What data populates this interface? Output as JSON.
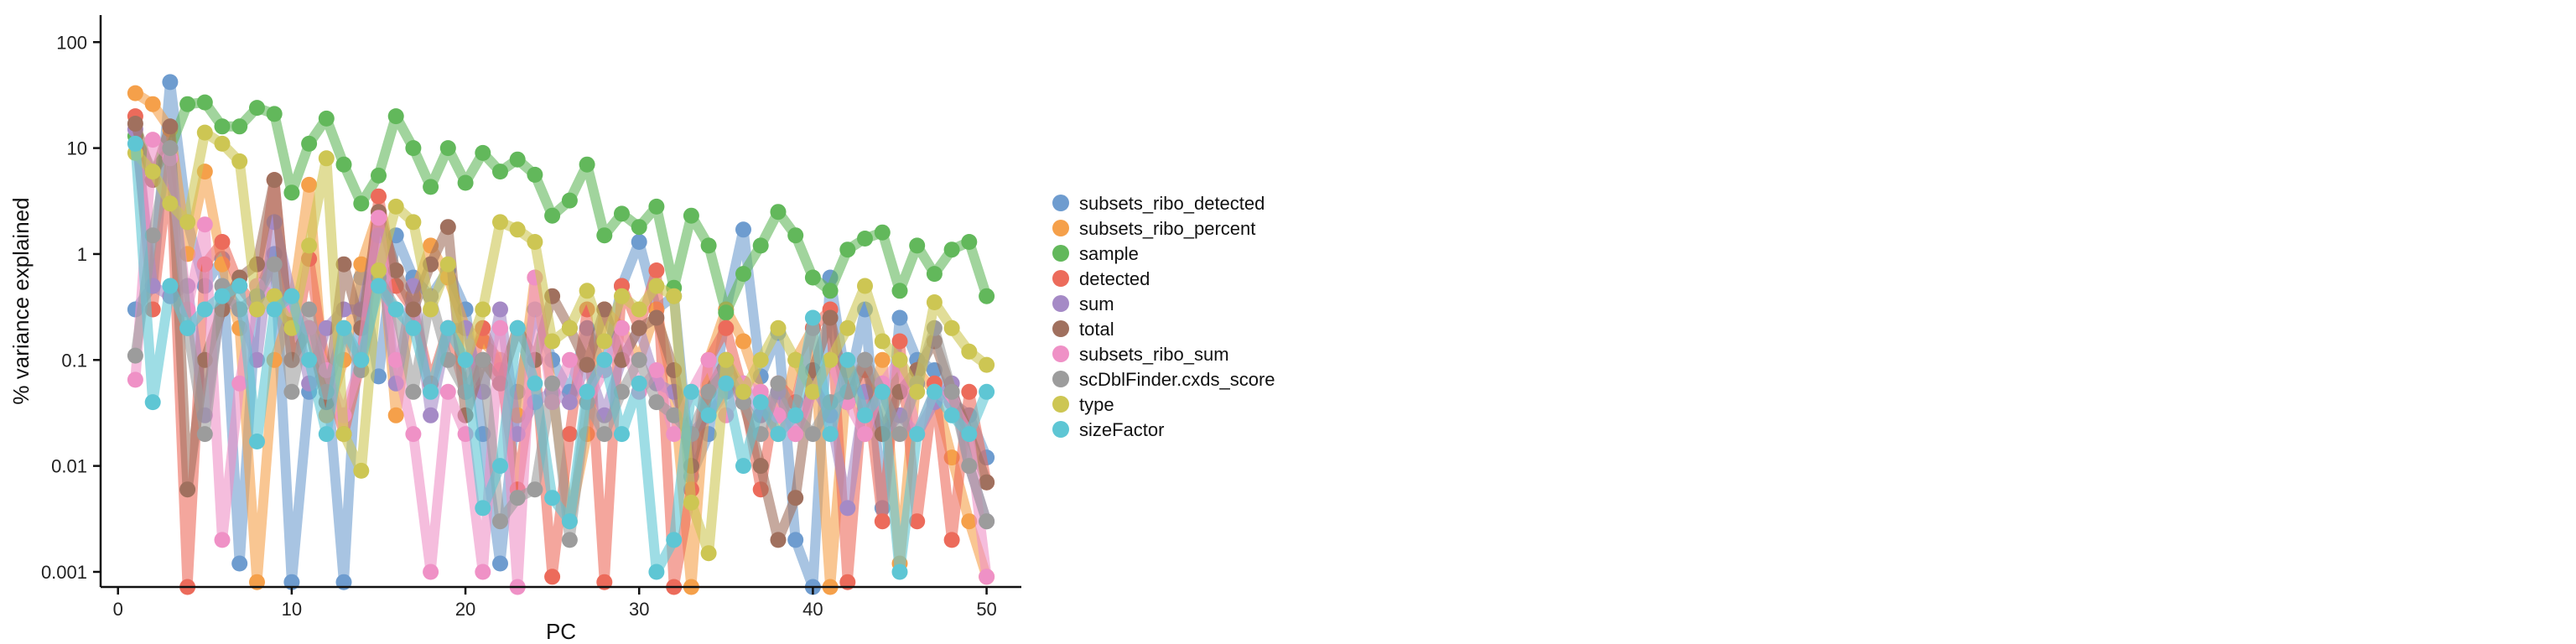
{
  "chart_data": {
    "type": "line",
    "title": "",
    "xlabel": "PC",
    "ylabel": "% variance explained",
    "y_scale": "log",
    "xlim": [
      -1,
      52
    ],
    "ylim": [
      0.00072,
      180
    ],
    "x_ticks": [
      0,
      10,
      20,
      30,
      40,
      50
    ],
    "y_ticks": [
      0.001,
      0.01,
      0.1,
      1,
      10,
      100
    ],
    "y_tick_labels": [
      "0.001",
      "0.01",
      "0.1",
      "1",
      "10",
      "100"
    ],
    "grid": false,
    "legend_position": "right",
    "x": [
      1,
      2,
      3,
      4,
      5,
      6,
      7,
      8,
      9,
      10,
      11,
      12,
      13,
      14,
      15,
      16,
      17,
      18,
      19,
      20,
      21,
      22,
      23,
      24,
      25,
      26,
      27,
      28,
      29,
      30,
      31,
      32,
      33,
      34,
      35,
      36,
      37,
      38,
      39,
      40,
      41,
      42,
      43,
      44,
      45,
      46,
      47,
      48,
      49,
      50
    ],
    "series": [
      {
        "name": "subsets_ribo_detected",
        "color": "#6e9ccf",
        "values": [
          0.3,
          0.5,
          42,
          2,
          0.5,
          0.9,
          0.0012,
          0.4,
          1,
          0.0008,
          0.05,
          0.08,
          0.0008,
          0.6,
          0.07,
          1.5,
          0.6,
          0.4,
          0.7,
          0.3,
          0.02,
          0.0012,
          0.05,
          0.3,
          0.1,
          0.05,
          0.2,
          0.08,
          0.5,
          1.3,
          0.3,
          0.4,
          0.008,
          0.02,
          0.3,
          1.7,
          0.07,
          0.18,
          0.002,
          0.0005,
          0.6,
          0.05,
          0.3,
          0.004,
          0.25,
          0.1,
          0.08,
          0.04,
          0.03,
          0.012
        ]
      },
      {
        "name": "subsets_ribo_percent",
        "color": "#f5a04a",
        "values": [
          33,
          26,
          15,
          1,
          6,
          0.8,
          0.2,
          0.0008,
          0.1,
          0.3,
          4.5,
          0.03,
          0.1,
          0.8,
          2.5,
          0.03,
          0.4,
          1.2,
          0.6,
          0.2,
          0.15,
          0.1,
          0.03,
          0.6,
          0.05,
          0.003,
          0.02,
          0.3,
          0.2,
          0.1,
          0.3,
          0.05,
          0.0006,
          0.1,
          0.3,
          0.15,
          0.05,
          0.02,
          0.1,
          0.2,
          0.0006,
          0.08,
          0.02,
          0.1,
          0.0012,
          0.08,
          0.05,
          0.012,
          0.003,
          0.0009
        ]
      },
      {
        "name": "sample",
        "color": "#62b85b",
        "values": [
          13,
          6,
          10,
          26,
          27,
          16,
          16,
          24,
          21,
          3.8,
          11,
          19,
          7,
          3,
          5.5,
          20,
          10,
          4.3,
          10,
          4.7,
          9,
          6,
          7.8,
          5.6,
          2.3,
          3.2,
          7,
          1.5,
          2.4,
          1.8,
          2.8,
          0.48,
          2.3,
          1.2,
          0.28,
          0.65,
          1.2,
          2.5,
          1.5,
          0.6,
          0.45,
          1.1,
          1.4,
          1.6,
          0.45,
          1.2,
          0.65,
          1.1,
          1.3,
          0.4
        ]
      },
      {
        "name": "detected",
        "color": "#ec6b5b",
        "values": [
          20,
          0.3,
          8,
          0.0006,
          0.8,
          1.3,
          0.5,
          0.3,
          5,
          0.1,
          0.9,
          0.08,
          0.02,
          0.1,
          3.5,
          0.5,
          0.3,
          0.06,
          0.2,
          0.05,
          0.2,
          0.08,
          0.006,
          0.1,
          0.0009,
          0.02,
          0.3,
          0.0008,
          0.5,
          0.2,
          0.7,
          0.0005,
          0.006,
          0.1,
          0.2,
          0.05,
          0.006,
          0.06,
          0.04,
          0.2,
          0.3,
          0.0008,
          0.08,
          0.003,
          0.15,
          0.003,
          0.06,
          0.002,
          0.05,
          0.007
        ]
      },
      {
        "name": "sum",
        "color": "#a58ac6",
        "values": [
          15,
          0.5,
          0.4,
          0.5,
          0.03,
          0.4,
          0.3,
          0.1,
          2,
          0.4,
          0.06,
          0.2,
          0.3,
          0.3,
          1.5,
          0.06,
          0.5,
          0.03,
          0.2,
          0.2,
          0.05,
          0.3,
          0.02,
          0.04,
          0.05,
          0.04,
          0.09,
          0.03,
          0.1,
          0.2,
          0.06,
          0.05,
          0.02,
          0.03,
          0.05,
          0.06,
          0.03,
          0.05,
          0.02,
          0.06,
          0.03,
          0.004,
          0.05,
          0.02,
          0.03,
          0.02,
          0.04,
          0.06,
          0.01,
          0.003
        ]
      },
      {
        "name": "total",
        "color": "#a0705e",
        "values": [
          17,
          5,
          16,
          0.006,
          0.1,
          0.3,
          0.6,
          0.8,
          5,
          0.1,
          0.2,
          0.04,
          0.8,
          0.2,
          2.5,
          0.7,
          0.3,
          0.8,
          1.8,
          0.03,
          0.1,
          0.06,
          0.2,
          0.1,
          0.4,
          0.2,
          0.09,
          0.3,
          0.1,
          0.2,
          0.25,
          0.08,
          0.01,
          0.05,
          0.1,
          0.04,
          0.01,
          0.002,
          0.005,
          0.08,
          0.25,
          0.04,
          0.1,
          0.02,
          0.05,
          0.08,
          0.15,
          0.05,
          0.02,
          0.007
        ]
      },
      {
        "name": "subsets_ribo_sum",
        "color": "#ef91c6",
        "values": [
          0.065,
          12,
          8,
          0.3,
          1.9,
          0.002,
          0.06,
          0.5,
          0.4,
          0.3,
          0.2,
          0.08,
          0.03,
          0.1,
          2.2,
          0.1,
          0.02,
          0.001,
          0.05,
          0.02,
          0.001,
          0.2,
          0.0006,
          0.6,
          0.04,
          0.1,
          0.04,
          0.08,
          0.2,
          0.05,
          0.08,
          0.02,
          0.05,
          0.1,
          0.03,
          0.06,
          0.05,
          0.03,
          0.02,
          0.05,
          0.1,
          0.04,
          0.02,
          0.06,
          0.1,
          0.02,
          0.05,
          0.04,
          0.02,
          0.0009
        ]
      },
      {
        "name": "scDblFinder.cxds_score",
        "color": "#9c9c9c",
        "values": [
          0.11,
          1.5,
          10,
          0.2,
          0.02,
          0.5,
          0.3,
          0.4,
          0.8,
          0.05,
          0.3,
          0.05,
          0.2,
          0.08,
          0.6,
          0.3,
          0.05,
          0.4,
          0.1,
          0.05,
          0.1,
          0.003,
          0.005,
          0.006,
          0.06,
          0.002,
          0.04,
          0.02,
          0.05,
          0.1,
          0.04,
          0.03,
          0.02,
          0.05,
          0.08,
          0.04,
          0.02,
          0.06,
          0.03,
          0.02,
          0.04,
          0.05,
          0.1,
          0.05,
          0.02,
          0.06,
          0.2,
          0.05,
          0.01,
          0.003
        ]
      },
      {
        "name": "type",
        "color": "#cdc653",
        "values": [
          9,
          6,
          3,
          2,
          14,
          11,
          7.5,
          0.3,
          0.4,
          0.2,
          1.2,
          8,
          0.02,
          0.009,
          0.7,
          2.8,
          2,
          0.3,
          0.8,
          0.1,
          0.3,
          2,
          1.7,
          1.3,
          0.15,
          0.2,
          0.45,
          0.15,
          0.4,
          0.3,
          0.5,
          0.4,
          0.0045,
          0.0015,
          0.1,
          0.05,
          0.1,
          0.2,
          0.1,
          0.05,
          0.1,
          0.2,
          0.5,
          0.15,
          0.1,
          0.05,
          0.35,
          0.2,
          0.12,
          0.09
        ]
      },
      {
        "name": "sizeFactor",
        "color": "#5ec6d4",
        "values": [
          11,
          0.04,
          0.5,
          0.2,
          0.3,
          0.4,
          0.5,
          0.017,
          0.3,
          0.4,
          0.1,
          0.02,
          0.2,
          0.1,
          0.5,
          0.3,
          0.2,
          0.05,
          0.2,
          0.1,
          0.004,
          0.01,
          0.2,
          0.06,
          0.005,
          0.003,
          0.05,
          0.1,
          0.02,
          0.06,
          0.001,
          0.002,
          0.05,
          0.03,
          0.06,
          0.01,
          0.04,
          0.02,
          0.03,
          0.25,
          0.02,
          0.1,
          0.03,
          0.05,
          0.001,
          0.02,
          0.05,
          0.03,
          0.02,
          0.05
        ]
      }
    ]
  }
}
